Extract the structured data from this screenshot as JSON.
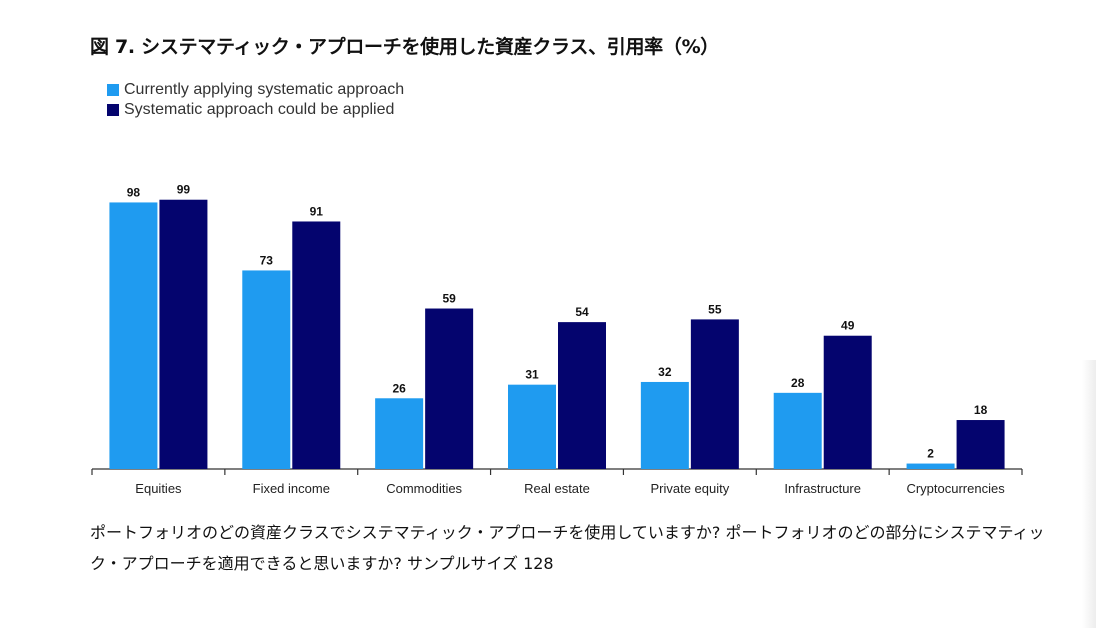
{
  "title": "図 7. システマティック・アプローチを使用した資産クラス、引用率（%）",
  "note": "ポートフォリオのどの資産クラスでシステマティック・アプローチを使用していますか? ポートフォリオのどの部分にシステマティック・アプローチを適用できると思いますか? サンプルサイズ 128",
  "chart_data": {
    "type": "bar",
    "title": "図 7. システマティック・アプローチを使用した資産クラス、引用率（%）",
    "categories": [
      "Equities",
      "Fixed income",
      "Commodities",
      "Real estate",
      "Private equity",
      "Infrastructure",
      "Cryptocurrencies"
    ],
    "series": [
      {
        "name": "Currently applying systematic approach",
        "color": "#1f9bf0",
        "values": [
          98,
          73,
          26,
          31,
          32,
          28,
          2
        ]
      },
      {
        "name": "Systematic approach could be applied",
        "color": "#04046e",
        "values": [
          99,
          91,
          59,
          54,
          55,
          49,
          18
        ]
      }
    ],
    "xlabel": "",
    "ylabel": "",
    "ylim": [
      0,
      100
    ],
    "grid": false,
    "legend": "top-left"
  }
}
